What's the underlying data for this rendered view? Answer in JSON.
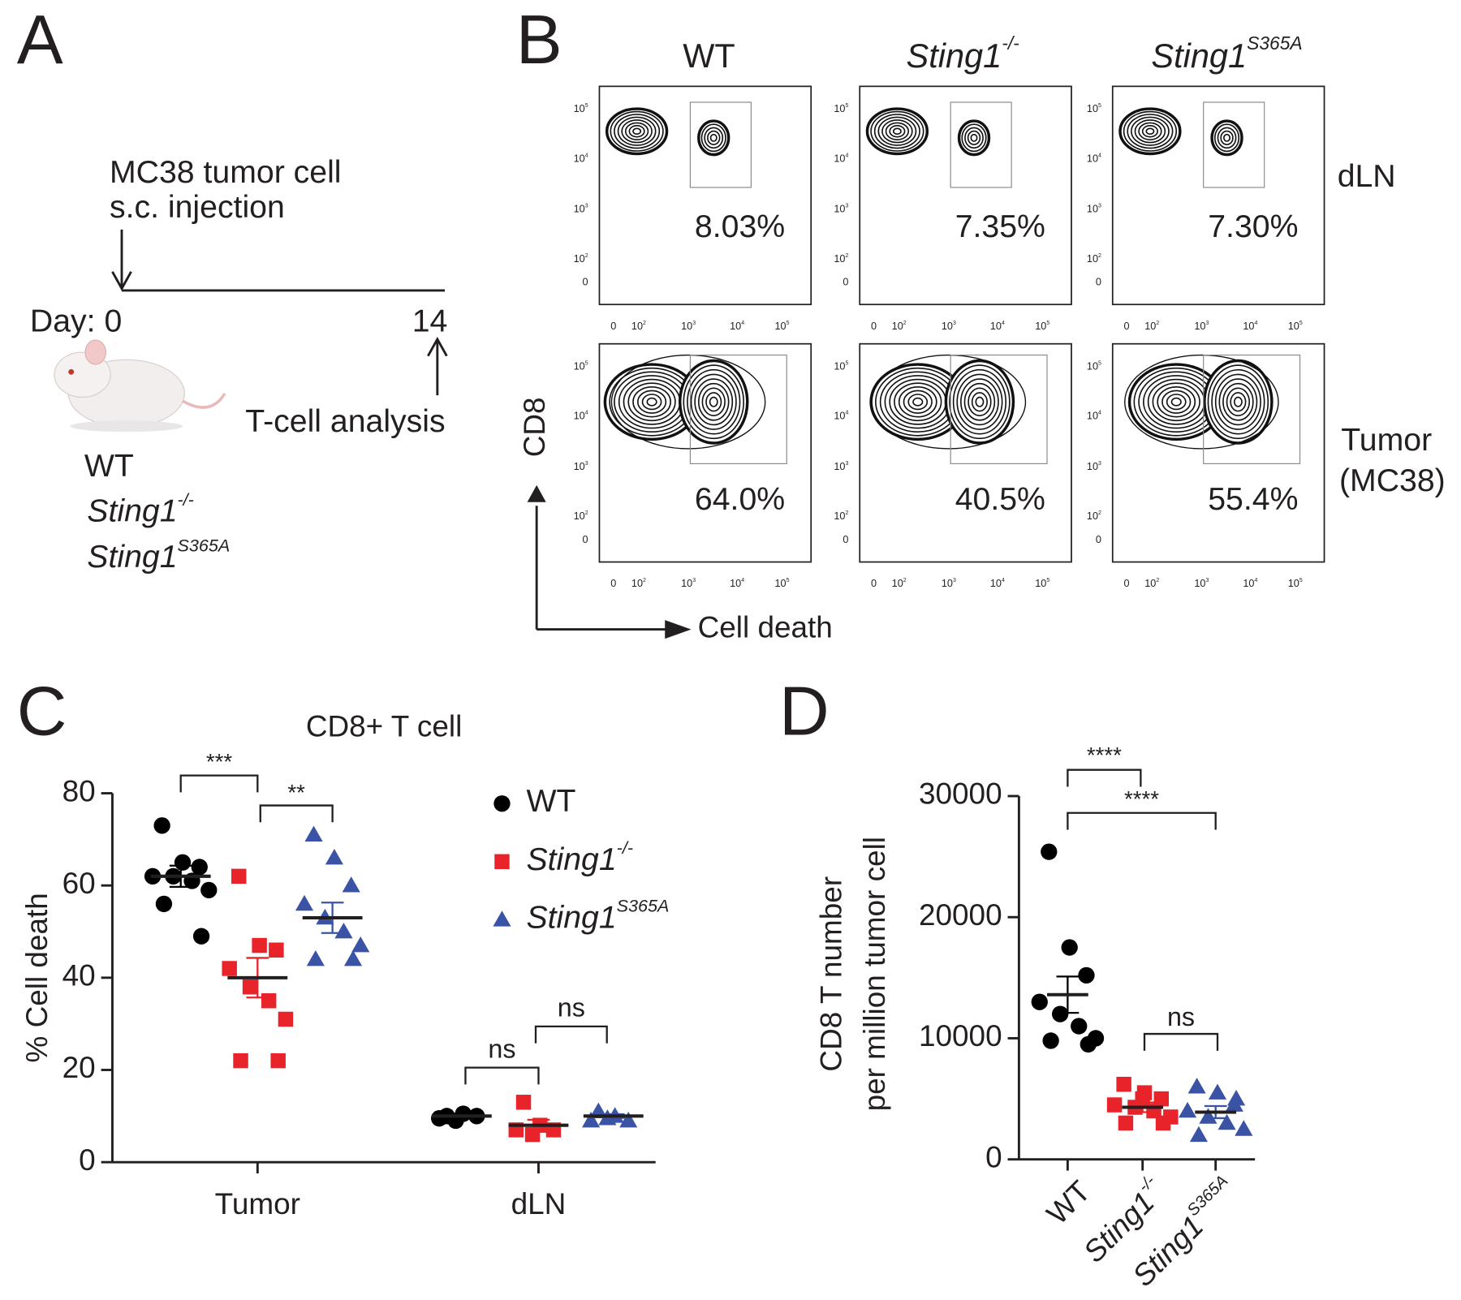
{
  "panel_labels": [
    "A",
    "B",
    "C",
    "D"
  ],
  "panel_a": {
    "injection": [
      "MC38 tumor cell",
      "s.c. injection"
    ],
    "day_start": "Day: 0",
    "day_end": "14",
    "analysis": "T-cell analysis",
    "genotypes": [
      {
        "name": "WT"
      },
      {
        "name": "Sting1",
        "superscript": "-/-"
      },
      {
        "name": "Sting1",
        "superscript": "S365A"
      }
    ]
  },
  "panel_b": {
    "columns": [
      {
        "name": "WT"
      },
      {
        "name": "Sting1",
        "superscript": "-/-"
      },
      {
        "name": "Sting1",
        "superscript": "S365A"
      }
    ],
    "rows": [
      [
        "dLN"
      ],
      [
        "Tumor",
        "(MC38)"
      ]
    ],
    "percentages": [
      [
        "8.03%",
        "7.35%",
        "7.30%"
      ],
      [
        "64.0%",
        "40.5%",
        "55.4%"
      ]
    ],
    "y_label": "CD8",
    "x_label": "Cell death",
    "tick_labels": [
      {
        "base": "0"
      },
      {
        "base": "10",
        "superscript": "2"
      },
      {
        "base": "10",
        "superscript": "3"
      },
      {
        "base": "10",
        "superscript": "4"
      },
      {
        "base": "10",
        "superscript": "5"
      }
    ]
  },
  "chart_data": [
    {
      "type": "scatter",
      "title": "CD8+ T cell",
      "y_label": "% Cell death",
      "categories": [
        "Tumor",
        "dLN"
      ],
      "ylim": [
        0,
        80
      ],
      "yticks": [
        0,
        20,
        40,
        60,
        80
      ],
      "series": [
        {
          "name": "WT",
          "color": "#000000",
          "marker": "circle",
          "values": [
            [
              73,
              65,
              64,
              62,
              62,
              61,
              59,
              56,
              49
            ],
            [
              10,
              10.5,
              10,
              9.5,
              9
            ]
          ],
          "mean": [
            62,
            10
          ],
          "sem": [
            2.3,
            0.3
          ]
        },
        {
          "name": "Sting1",
          "superscript": "-/-",
          "color": "#e8232a",
          "marker": "square",
          "values": [
            [
              62,
              47,
              46,
              42,
              38,
              35,
              31,
              22,
              22
            ],
            [
              13,
              8,
              7,
              7,
              6
            ]
          ],
          "mean": [
            40,
            8
          ],
          "sem": [
            4.3,
            1.2
          ]
        },
        {
          "name": "Sting1",
          "superscript": "S365A",
          "color": "#3b53a4",
          "marker": "triangle",
          "values": [
            [
              71,
              66,
              60,
              56,
              53,
              50,
              47,
              44,
              44
            ],
            [
              11,
              10,
              9,
              9,
              9.5
            ]
          ],
          "mean": [
            53,
            10
          ],
          "sem": [
            3.3,
            0.4
          ]
        }
      ],
      "annotations": [
        "***",
        "**",
        "ns",
        "ns"
      ]
    },
    {
      "type": "scatter",
      "y_label": [
        "CD8 T number",
        "per million tumor cell"
      ],
      "categories": [
        "WT",
        "Sting1",
        "Sting1"
      ],
      "category_superscripts": [
        null,
        "-/-",
        "S365A"
      ],
      "ylim": [
        0,
        30000
      ],
      "yticks": [
        0,
        10000,
        20000,
        30000
      ],
      "series": [
        {
          "color": "#000000",
          "marker": "circle",
          "values": [
            25400,
            17500,
            15200,
            13000,
            12000,
            11000,
            10000,
            9800,
            9500
          ],
          "mean": 13600,
          "sem": 1500
        },
        {
          "color": "#e8232a",
          "marker": "square",
          "values": [
            6200,
            5500,
            5000,
            4500,
            4300,
            4000,
            3500,
            3000,
            3000,
            5000
          ],
          "mean": 4300,
          "sem": 400
        },
        {
          "color": "#3b53a4",
          "marker": "triangle",
          "values": [
            6000,
            5500,
            4500,
            4000,
            3500,
            3000,
            2500,
            2000,
            5000
          ],
          "mean": 3900,
          "sem": 500
        }
      ],
      "annotations": [
        "****",
        "****",
        "ns"
      ]
    }
  ]
}
